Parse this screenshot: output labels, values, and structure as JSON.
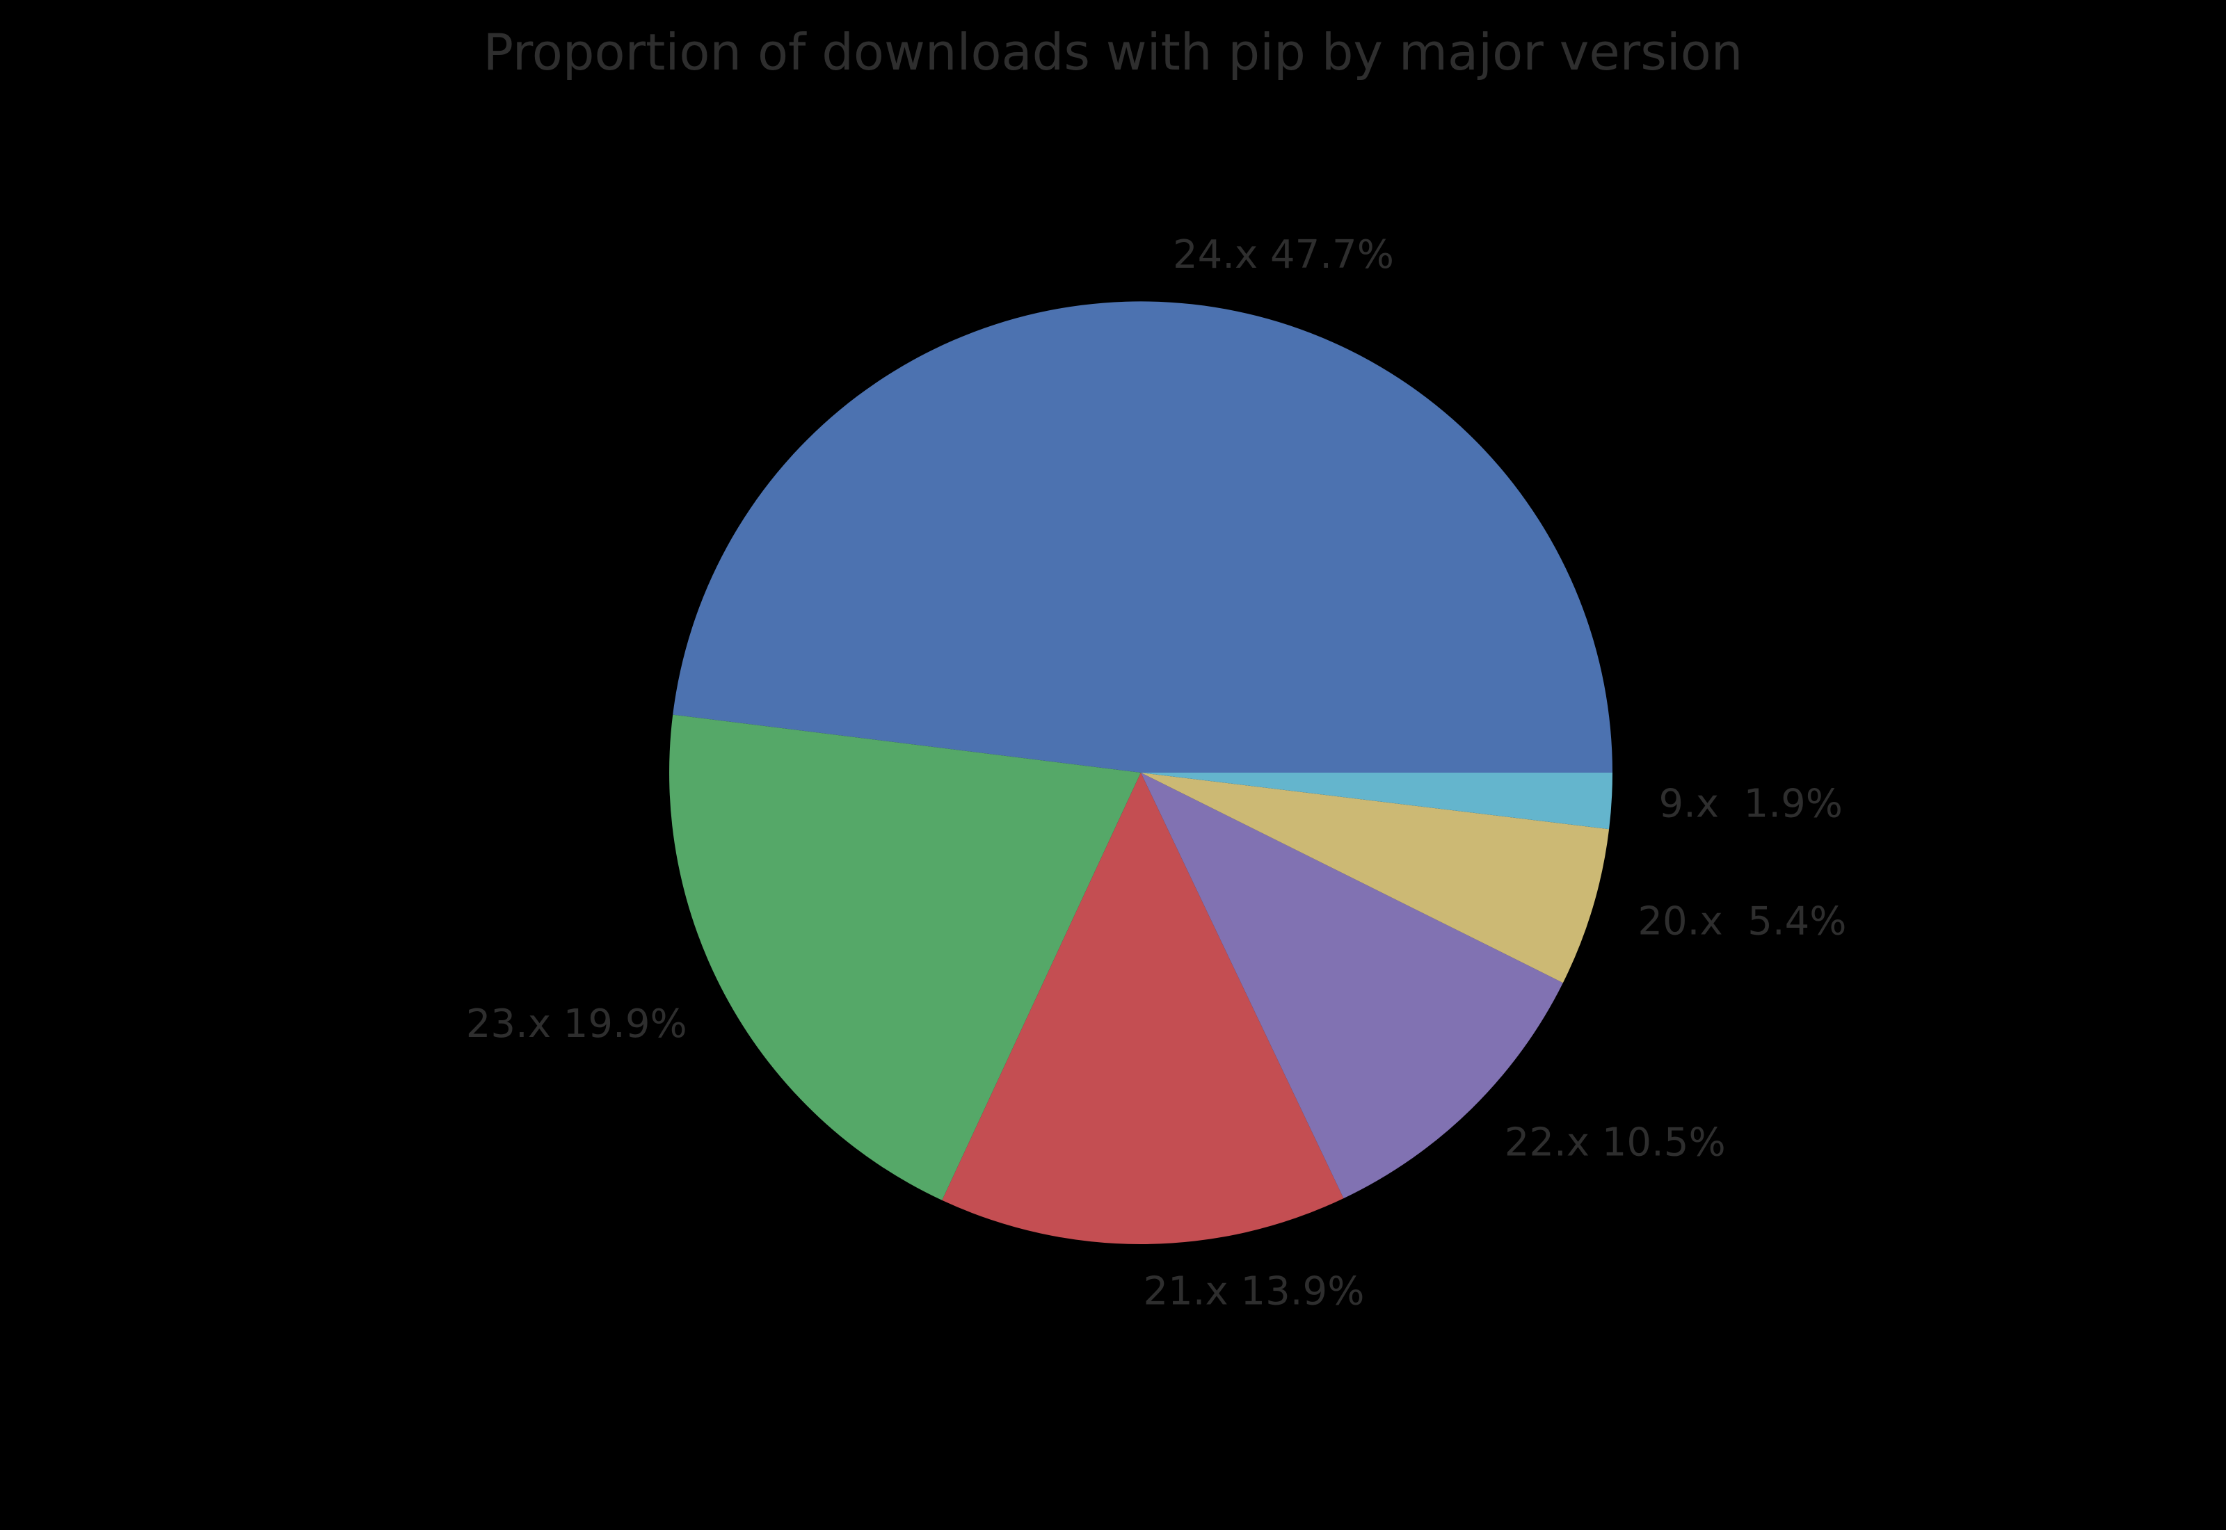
{
  "chart_data": {
    "type": "pie",
    "title": "Proportion of downloads with pip by major version",
    "background_color": "#000000",
    "text_color": "#2e2e2e",
    "legend": false,
    "start_angle_deg": 0,
    "direction": "counterclockwise",
    "label_distance": 1.1,
    "slices": [
      {
        "name": "24x",
        "version": "24.x",
        "percent": 47.7,
        "value": 47.7,
        "label": "24.x 47.7%",
        "color": "#4c72b0"
      },
      {
        "name": "23x",
        "version": "23.x",
        "percent": 19.9,
        "value": 19.9,
        "label": "23.x 19.9%",
        "color": "#55a868"
      },
      {
        "name": "21x",
        "version": "21.x",
        "percent": 13.9,
        "value": 13.9,
        "label": "21.x 13.9%",
        "color": "#c44e52"
      },
      {
        "name": "22x",
        "version": "22.x",
        "percent": 10.5,
        "value": 10.5,
        "label": "22.x 10.5%",
        "color": "#8172b2"
      },
      {
        "name": "20x",
        "version": "20.x",
        "percent": 5.4,
        "value": 5.4,
        "label": "20.x  5.4%",
        "color": "#ccb974"
      },
      {
        "name": "9x",
        "version": "9.x",
        "percent": 1.9,
        "value": 1.9,
        "label": "9.x  1.9%",
        "color": "#64b5cd"
      }
    ]
  }
}
